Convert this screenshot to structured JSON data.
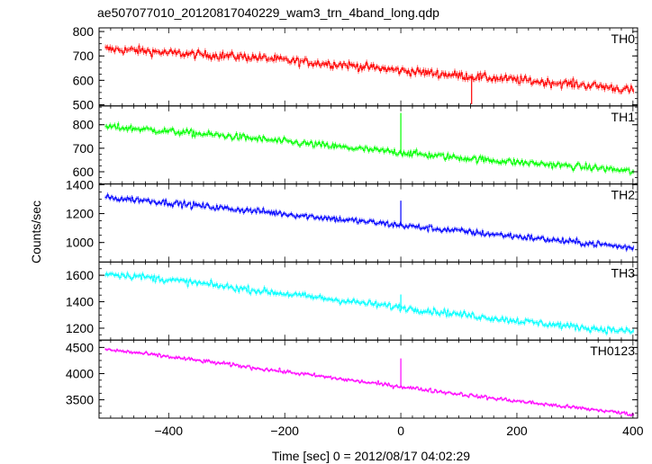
{
  "chart_data": {
    "type": "line",
    "title": "ae507077010_20120817040229_wam3_trn_4band_long.qdp",
    "xlabel": "Time [sec] 0 = 2012/08/17 04:02:29",
    "ylabel": "Counts/sec",
    "xlim": [
      -520,
      408
    ],
    "xticks": [
      -400,
      -200,
      0,
      200,
      400
    ],
    "x_range": [
      -510,
      400
    ],
    "panels": [
      {
        "name": "TH0",
        "color": "#ff0000",
        "ylim": [
          495,
          815
        ],
        "yticks": [
          500,
          600,
          700,
          800
        ],
        "x": [
          -510,
          -450,
          -400,
          -350,
          -300,
          -250,
          -200,
          -150,
          -100,
          -50,
          0,
          50,
          100,
          150,
          200,
          250,
          300,
          350,
          400
        ],
        "values": [
          728,
          722,
          712,
          706,
          700,
          694,
          682,
          672,
          664,
          652,
          640,
          630,
          620,
          610,
          602,
          592,
          584,
          574,
          558
        ],
        "noise": 30,
        "spike_x": 122,
        "spike_value": 502
      },
      {
        "name": "TH1",
        "color": "#00ff00",
        "ylim": [
          548,
          880
        ],
        "yticks": [
          600,
          700,
          800
        ],
        "x": [
          -510,
          -450,
          -400,
          -350,
          -300,
          -250,
          -200,
          -150,
          -100,
          -50,
          0,
          50,
          100,
          150,
          200,
          250,
          300,
          350,
          400
        ],
        "values": [
          792,
          782,
          772,
          762,
          752,
          740,
          728,
          716,
          704,
          692,
          682,
          670,
          660,
          650,
          640,
          632,
          622,
          614,
          600
        ],
        "noise": 26,
        "spike_x": 0,
        "spike_value": 850
      },
      {
        "name": "TH2",
        "color": "#0000ff",
        "ylim": [
          865,
          1405
        ],
        "yticks": [
          1000,
          1200,
          1400
        ],
        "x": [
          -510,
          -450,
          -400,
          -350,
          -300,
          -250,
          -200,
          -150,
          -100,
          -50,
          0,
          50,
          100,
          150,
          200,
          250,
          300,
          350,
          400
        ],
        "values": [
          1310,
          1295,
          1275,
          1255,
          1235,
          1218,
          1198,
          1178,
          1158,
          1140,
          1118,
          1098,
          1080,
          1060,
          1042,
          1022,
          1002,
          985,
          960
        ],
        "noise": 38,
        "spike_x": 0,
        "spike_value": 1290
      },
      {
        "name": "TH3",
        "color": "#00ffff",
        "ylim": [
          1110,
          1700
        ],
        "yticks": [
          1200,
          1400,
          1600
        ],
        "x": [
          -510,
          -450,
          -400,
          -350,
          -300,
          -250,
          -200,
          -150,
          -100,
          -50,
          0,
          50,
          100,
          150,
          200,
          250,
          300,
          350,
          400
        ],
        "values": [
          1615,
          1590,
          1565,
          1540,
          1512,
          1485,
          1460,
          1434,
          1408,
          1382,
          1356,
          1330,
          1305,
          1280,
          1256,
          1232,
          1210,
          1190,
          1175
        ],
        "noise": 45,
        "spike_x": 0,
        "spike_value": 1455
      },
      {
        "name": "TH0123",
        "color": "#ff00ff",
        "ylim": [
          3150,
          4640
        ],
        "yticks": [
          3500,
          4000,
          4500
        ],
        "x": [
          -510,
          -450,
          -400,
          -350,
          -300,
          -250,
          -200,
          -150,
          -100,
          -50,
          0,
          50,
          100,
          150,
          200,
          250,
          300,
          350,
          400
        ],
        "values": [
          4460,
          4390,
          4320,
          4250,
          4180,
          4105,
          4035,
          3965,
          3890,
          3820,
          3750,
          3680,
          3610,
          3540,
          3475,
          3410,
          3350,
          3290,
          3220
        ],
        "noise": 65,
        "spike_x": 0,
        "spike_value": 4290
      }
    ]
  }
}
